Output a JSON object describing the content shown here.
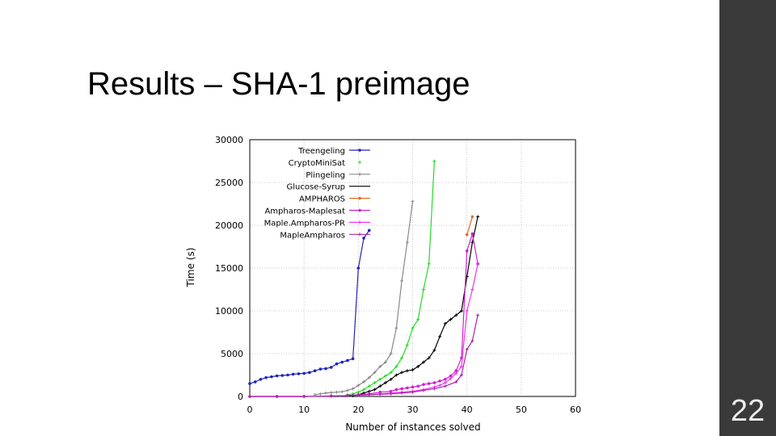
{
  "slide": {
    "title": "Results – SHA-1 preimage",
    "number": "22"
  },
  "colors": {
    "side_panel": "#3a3a3a",
    "background": "#ffffff"
  },
  "chart_data": {
    "type": "line",
    "title": "",
    "xlabel": "Number of instances solved",
    "ylabel": "Time (s)",
    "xlim": [
      0,
      60
    ],
    "ylim": [
      0,
      30000
    ],
    "x_ticks": [
      0,
      10,
      20,
      30,
      40,
      50,
      60
    ],
    "y_ticks": [
      0,
      5000,
      10000,
      15000,
      20000,
      25000,
      30000
    ],
    "grid": true,
    "legend_position": "top-left",
    "series": [
      {
        "name": "Treengeling",
        "color": "#2222bb",
        "marker": "circle",
        "line": true,
        "x": [
          0,
          1,
          2,
          3,
          4,
          5,
          6,
          7,
          8,
          9,
          10,
          11,
          12,
          13,
          14,
          15,
          16,
          17,
          18,
          19,
          20,
          21,
          22
        ],
        "y": [
          1500,
          1700,
          2000,
          2200,
          2300,
          2400,
          2450,
          2500,
          2600,
          2650,
          2700,
          2800,
          3000,
          3200,
          3250,
          3400,
          3800,
          4000,
          4200,
          4400,
          15000,
          18500,
          19400
        ]
      },
      {
        "name": "CryptoMiniSat",
        "color": "#22dd22",
        "marker": "cross",
        "line": true,
        "x": [
          18,
          19,
          20,
          21,
          22,
          23,
          24,
          25,
          26,
          27,
          28,
          29,
          30,
          31,
          32,
          33,
          34
        ],
        "y": [
          200,
          300,
          500,
          800,
          1200,
          1600,
          2000,
          2400,
          2800,
          3500,
          4500,
          6000,
          8000,
          9000,
          12500,
          15500,
          27500
        ]
      },
      {
        "name": "Plingeling",
        "color": "#888888",
        "marker": "cross",
        "line": true,
        "x": [
          12,
          13,
          14,
          15,
          16,
          17,
          18,
          19,
          20,
          21,
          22,
          23,
          24,
          25,
          26,
          27,
          28,
          29,
          30
        ],
        "y": [
          200,
          300,
          400,
          450,
          500,
          550,
          700,
          900,
          1300,
          1700,
          2200,
          2800,
          3500,
          4000,
          5000,
          8000,
          13500,
          18000,
          22800
        ]
      },
      {
        "name": "Glucose-Syrup",
        "color": "#000000",
        "marker": "cross",
        "line": true,
        "x": [
          19,
          20,
          21,
          22,
          23,
          24,
          25,
          26,
          27,
          28,
          29,
          30,
          31,
          32,
          33,
          34,
          35,
          36,
          37,
          38,
          39,
          40,
          41,
          42
        ],
        "y": [
          100,
          200,
          400,
          600,
          800,
          1200,
          1600,
          2000,
          2500,
          2800,
          3000,
          3100,
          3500,
          4000,
          4500,
          5400,
          7000,
          8500,
          9000,
          9500,
          10000,
          14000,
          18000,
          21000
        ]
      },
      {
        "name": "AMPHAROS",
        "color": "#e07020",
        "marker": "circle",
        "line": true,
        "x": [
          40,
          41
        ],
        "y": [
          18900,
          21000
        ]
      },
      {
        "name": "Ampharos-Maplesat",
        "color": "#cc22cc",
        "marker": "circle",
        "line": true,
        "x": [
          0,
          5,
          10,
          15,
          18,
          20,
          22,
          24,
          26,
          27,
          28,
          29,
          30,
          31,
          32,
          33,
          34,
          35,
          36,
          37,
          38,
          39,
          40,
          41,
          42
        ],
        "y": [
          0,
          0,
          0,
          50,
          100,
          200,
          300,
          500,
          600,
          800,
          900,
          1000,
          1100,
          1200,
          1400,
          1500,
          1600,
          1800,
          2000,
          2400,
          3000,
          4500,
          17000,
          19000,
          15500
        ]
      },
      {
        "name": "Maple.Ampharos-PR",
        "color": "#ee33ee",
        "marker": "cross",
        "line": true,
        "x": [
          0,
          5,
          10,
          15,
          18,
          20,
          22,
          24,
          26,
          28,
          30,
          32,
          34,
          35,
          36,
          37,
          38,
          39,
          40,
          41,
          42
        ],
        "y": [
          0,
          0,
          0,
          50,
          100,
          150,
          200,
          300,
          400,
          500,
          600,
          800,
          1100,
          1300,
          1600,
          2100,
          2700,
          3500,
          10000,
          12500,
          15500
        ]
      },
      {
        "name": "MapleAmpharos",
        "color": "#aa22aa",
        "marker": "cross",
        "line": true,
        "x": [
          0,
          5,
          10,
          15,
          18,
          20,
          22,
          24,
          26,
          28,
          30,
          32,
          34,
          36,
          38,
          39,
          40,
          41,
          42
        ],
        "y": [
          0,
          0,
          0,
          50,
          100,
          150,
          200,
          250,
          300,
          400,
          500,
          700,
          900,
          1200,
          1700,
          2500,
          5500,
          6500,
          9500
        ]
      }
    ]
  }
}
